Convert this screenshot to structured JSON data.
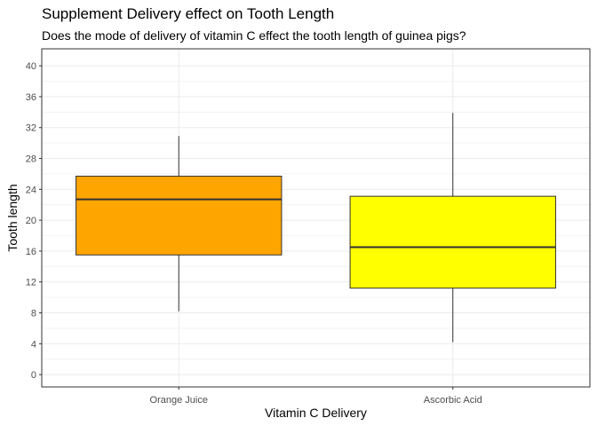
{
  "chart_data": {
    "type": "boxplot",
    "title": "Supplement Delivery effect on Tooth Length",
    "subtitle": "Does the mode of delivery of vitamin C effect the tooth length of guinea pigs?",
    "xlabel": "Vitamin C Delivery",
    "ylabel": "Tooth length",
    "ylim": [
      -1.6,
      42.2
    ],
    "yticks": [
      0,
      4,
      8,
      12,
      16,
      20,
      24,
      28,
      32,
      36,
      40
    ],
    "grid": true,
    "categories": [
      "Orange Juice",
      "Ascorbic Acid"
    ],
    "boxes": [
      {
        "category": "Orange Juice",
        "min": 8.2,
        "q1": 15.5,
        "median": 22.7,
        "q3": 25.7,
        "max": 30.9,
        "color": "#FFA500"
      },
      {
        "category": "Ascorbic Acid",
        "min": 4.2,
        "q1": 11.2,
        "median": 16.5,
        "q3": 23.1,
        "max": 33.9,
        "color": "#FFFF00"
      }
    ]
  }
}
